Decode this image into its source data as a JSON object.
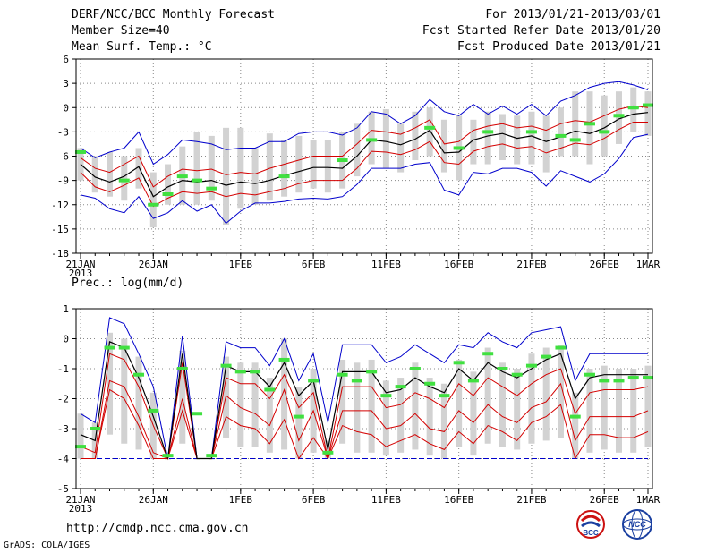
{
  "header": {
    "title": "DERF/NCC/BCC Monthly Forecast",
    "member_size": "Member Size=40",
    "variable": "Mean Surf. Temp.: °C",
    "period": "For 2013/01/21-2013/03/01",
    "fcst_started": "Fcst Started Refer Date 2013/01/20",
    "fcst_produced": "Fcst Produced Date 2013/01/21"
  },
  "footer": {
    "url": "http://cmdp.ncc.cma.gov.cn",
    "grads": "GrADS: COLA/IGES",
    "logo_bcc": "BCC",
    "logo_ncc": "NCC"
  },
  "colors": {
    "box": "#d2d2d2",
    "mean": "#000000",
    "std": "#d40000",
    "minmax": "#0000cc",
    "obs": "#40e040",
    "grid": "#888888"
  },
  "chart_data": [
    {
      "type": "line",
      "title": "Mean Surf. Temp.: °C",
      "x_ticks": [
        "21JAN",
        "26JAN",
        "1FEB",
        "6FEB",
        "11FEB",
        "16FEB",
        "21FEB",
        "26FEB",
        "1MAR"
      ],
      "x_tick_days": [
        0,
        5,
        11,
        16,
        21,
        26,
        31,
        36,
        39
      ],
      "year_label": "2013",
      "ylim": [
        -18,
        6
      ],
      "y_ticks": [
        "6",
        "3",
        "0",
        "-3",
        "-6",
        "-9",
        "-12",
        "-15",
        "-18"
      ],
      "series": [
        {
          "name": "ensemble mean",
          "values": [
            -7.0,
            -8.6,
            -9.2,
            -8.5,
            -7.3,
            -11.0,
            -9.8,
            -9.0,
            -9.2,
            -9.0,
            -9.6,
            -9.2,
            -9.4,
            -9.0,
            -8.4,
            -7.9,
            -7.4,
            -7.4,
            -7.5,
            -6.0,
            -4.0,
            -4.2,
            -4.6,
            -3.9,
            -2.8,
            -5.6,
            -5.5,
            -4.0,
            -3.5,
            -3.2,
            -3.8,
            -3.5,
            -4.2,
            -3.6,
            -2.9,
            -3.2,
            -2.5,
            -1.4,
            -0.8,
            -0.6
          ]
        },
        {
          "name": "upper spread",
          "values": [
            -6.2,
            -7.5,
            -8.0,
            -7.0,
            -6.0,
            -9.8,
            -8.5,
            -7.6,
            -7.8,
            -7.6,
            -8.3,
            -8.0,
            -8.2,
            -7.5,
            -7.0,
            -6.5,
            -6.0,
            -6.0,
            -6.0,
            -4.5,
            -2.8,
            -3.0,
            -3.3,
            -2.5,
            -1.5,
            -4.5,
            -4.2,
            -2.8,
            -2.3,
            -2.0,
            -2.5,
            -2.3,
            -2.8,
            -2.0,
            -1.6,
            -1.8,
            -1.0,
            -0.2,
            0.2,
            0.0
          ]
        },
        {
          "name": "lower spread",
          "values": [
            -8.0,
            -9.8,
            -10.4,
            -9.6,
            -8.7,
            -12.2,
            -11.2,
            -10.4,
            -10.6,
            -10.4,
            -11.0,
            -10.6,
            -10.8,
            -10.4,
            -10.0,
            -9.4,
            -9.0,
            -9.0,
            -9.0,
            -7.5,
            -5.4,
            -5.5,
            -5.8,
            -5.2,
            -4.2,
            -6.8,
            -7.0,
            -5.4,
            -4.8,
            -4.5,
            -5.0,
            -4.8,
            -5.6,
            -5.0,
            -4.4,
            -4.6,
            -3.8,
            -2.7,
            -1.8,
            -1.8
          ]
        },
        {
          "name": "max member",
          "values": [
            -5.0,
            -6.2,
            -5.5,
            -5.0,
            -3.0,
            -7.0,
            -5.8,
            -4.0,
            -4.2,
            -4.5,
            -5.2,
            -5.0,
            -5.0,
            -4.2,
            -4.2,
            -3.2,
            -3.0,
            -3.0,
            -3.4,
            -2.5,
            -0.5,
            -0.8,
            -2.0,
            -1.0,
            1.0,
            -0.5,
            -1.0,
            0.4,
            -0.8,
            0.2,
            -0.8,
            0.4,
            -1.0,
            0.8,
            1.5,
            2.5,
            3.0,
            3.2,
            2.8,
            2.2
          ]
        },
        {
          "name": "min member",
          "values": [
            -10.8,
            -11.2,
            -12.5,
            -13.0,
            -11.0,
            -13.7,
            -13.0,
            -11.5,
            -12.8,
            -12.0,
            -14.3,
            -12.8,
            -11.8,
            -11.8,
            -11.6,
            -11.3,
            -11.2,
            -11.3,
            -11.0,
            -9.5,
            -7.5,
            -7.5,
            -7.5,
            -7.0,
            -6.8,
            -10.2,
            -10.8,
            -8.0,
            -8.2,
            -7.5,
            -7.5,
            -8.0,
            -9.7,
            -7.8,
            -8.5,
            -9.2,
            -8.2,
            -6.3,
            -3.7,
            -3.3
          ]
        },
        {
          "name": "box upper",
          "values": [
            -5.0,
            -6.0,
            -5.5,
            -6.0,
            -5.0,
            -8.0,
            -7.0,
            -4.8,
            -3.0,
            -3.5,
            -2.5,
            -2.5,
            -5.0,
            -3.2,
            -4.0,
            -3.5,
            -4.0,
            -4.0,
            -3.0,
            -2.0,
            -0.5,
            -0.2,
            -2.0,
            -0.5,
            0.0,
            -1.5,
            -1.0,
            -1.5,
            -0.5,
            -0.8,
            -1.0,
            -0.5,
            -1.0,
            0.0,
            2.0,
            2.0,
            1.5,
            2.0,
            2.5,
            2.0
          ]
        },
        {
          "name": "box lower",
          "values": [
            -9.0,
            -10.5,
            -11.0,
            -11.5,
            -10.0,
            -14.8,
            -12.0,
            -12.0,
            -12.0,
            -11.5,
            -14.5,
            -12.5,
            -12.0,
            -11.5,
            -11.0,
            -10.5,
            -10.0,
            -10.5,
            -10.0,
            -8.5,
            -7.0,
            -7.5,
            -8.0,
            -6.5,
            -6.0,
            -8.0,
            -9.0,
            -7.0,
            -7.0,
            -6.5,
            -7.0,
            -7.0,
            -8.0,
            -6.0,
            -6.0,
            -7.0,
            -6.0,
            -4.5,
            -3.0,
            -3.5
          ]
        },
        {
          "name": "observed",
          "values": [
            -5.5,
            null,
            null,
            -9.0,
            null,
            -12.0,
            -10.7,
            -8.5,
            -9.0,
            -10.0,
            null,
            null,
            null,
            null,
            -8.5,
            null,
            null,
            null,
            -6.5,
            null,
            -4.0,
            null,
            null,
            null,
            -2.5,
            null,
            -5.0,
            null,
            -3.0,
            null,
            null,
            -3.0,
            null,
            -3.5,
            -4.0,
            -2.0,
            -3.0,
            -1.0,
            0.0,
            0.3
          ]
        }
      ]
    },
    {
      "type": "line",
      "title": "Prec.: log(mm/d)",
      "x_ticks": [
        "21JAN",
        "26JAN",
        "1FEB",
        "6FEB",
        "11FEB",
        "16FEB",
        "21FEB",
        "26FEB",
        "1MAR"
      ],
      "x_tick_days": [
        0,
        5,
        11,
        16,
        21,
        26,
        31,
        36,
        39
      ],
      "year_label": "2013",
      "ylim": [
        -5,
        1
      ],
      "y_ticks": [
        "1",
        "0",
        "-1",
        "-2",
        "-3",
        "-4",
        "-5"
      ],
      "series": [
        {
          "name": "ensemble mean",
          "values": [
            -3.2,
            -3.4,
            -0.1,
            -0.3,
            -1.3,
            -2.6,
            -4.0,
            -0.5,
            -4.0,
            -4.0,
            -0.9,
            -1.1,
            -1.1,
            -1.6,
            -0.8,
            -1.9,
            -1.4,
            -3.7,
            -1.1,
            -1.1,
            -1.1,
            -1.8,
            -1.7,
            -1.3,
            -1.6,
            -1.8,
            -1.0,
            -1.4,
            -0.8,
            -1.1,
            -1.3,
            -1.0,
            -0.7,
            -0.5,
            -2.0,
            -1.3,
            -1.2,
            -1.2,
            -1.2,
            -1.2
          ]
        },
        {
          "name": "upper spread",
          "values": [
            -3.6,
            -3.8,
            -0.5,
            -0.7,
            -1.6,
            -2.9,
            -4.0,
            -0.8,
            -4.0,
            -4.0,
            -1.3,
            -1.5,
            -1.5,
            -2.0,
            -1.2,
            -2.3,
            -1.8,
            -4.0,
            -1.6,
            -1.6,
            -1.6,
            -2.3,
            -2.2,
            -1.8,
            -2.0,
            -2.3,
            -1.5,
            -1.9,
            -1.3,
            -1.6,
            -1.9,
            -1.5,
            -1.2,
            -1.0,
            -2.5,
            -1.8,
            -1.7,
            -1.7,
            -1.7,
            -1.6
          ]
        },
        {
          "name": "lower spread",
          "values": [
            -4.0,
            -4.0,
            -1.4,
            -1.6,
            -2.6,
            -3.8,
            -4.0,
            -2.0,
            -4.0,
            -4.0,
            -1.9,
            -2.3,
            -2.5,
            -2.9,
            -1.7,
            -3.4,
            -2.4,
            -4.0,
            -2.4,
            -2.4,
            -2.4,
            -3.0,
            -2.9,
            -2.5,
            -3.0,
            -3.1,
            -2.4,
            -2.8,
            -2.2,
            -2.6,
            -2.8,
            -2.3,
            -2.1,
            -1.5,
            -3.4,
            -2.6,
            -2.6,
            -2.6,
            -2.6,
            -2.4
          ]
        },
        {
          "name": "lowest spread",
          "values": [
            -4.0,
            -4.0,
            -1.7,
            -2.0,
            -2.9,
            -4.0,
            -4.0,
            -2.4,
            -4.0,
            -4.0,
            -2.6,
            -2.9,
            -3.0,
            -3.5,
            -2.7,
            -4.0,
            -3.3,
            -4.0,
            -2.9,
            -3.1,
            -3.2,
            -3.6,
            -3.4,
            -3.2,
            -3.5,
            -3.7,
            -3.1,
            -3.5,
            -2.9,
            -3.1,
            -3.4,
            -2.8,
            -2.6,
            -2.2,
            -4.0,
            -3.2,
            -3.2,
            -3.3,
            -3.3,
            -3.1
          ]
        },
        {
          "name": "max member",
          "values": [
            -2.5,
            -2.8,
            0.7,
            0.5,
            -0.5,
            -1.6,
            -4.0,
            0.1,
            -4.0,
            -4.0,
            -0.1,
            -0.3,
            -0.3,
            -0.9,
            0.0,
            -1.4,
            -0.5,
            -2.8,
            -0.2,
            -0.2,
            -0.2,
            -0.8,
            -0.6,
            -0.2,
            -0.5,
            -0.8,
            -0.2,
            -0.3,
            0.2,
            -0.1,
            -0.3,
            0.2,
            0.3,
            0.4,
            -1.4,
            -0.5,
            -0.5,
            -0.5,
            -0.5,
            -0.5
          ]
        },
        {
          "name": "box upper",
          "values": [
            -2.5,
            -2.8,
            0.2,
            0.0,
            -0.6,
            -1.8,
            -4.0,
            -0.4,
            -4.0,
            -4.0,
            -0.6,
            -0.8,
            -0.8,
            -1.3,
            0.0,
            -1.6,
            -1.0,
            -3.4,
            -0.7,
            -0.8,
            -0.7,
            -1.4,
            -1.3,
            -0.8,
            -1.3,
            -1.5,
            -0.7,
            -1.1,
            -0.3,
            -0.8,
            -1.0,
            -0.5,
            -0.3,
            -0.2,
            -1.8,
            -1.0,
            -0.9,
            -1.0,
            -1.0,
            -0.9
          ]
        },
        {
          "name": "box lower",
          "values": [
            -4.0,
            -4.0,
            -3.2,
            -3.5,
            -3.7,
            -4.0,
            -4.0,
            -3.5,
            -4.0,
            -4.0,
            -3.3,
            -3.6,
            -3.6,
            -3.8,
            -3.7,
            -4.0,
            -3.8,
            -4.0,
            -3.5,
            -3.8,
            -3.8,
            -3.9,
            -3.8,
            -3.7,
            -3.9,
            -4.0,
            -3.6,
            -3.9,
            -3.5,
            -3.6,
            -3.7,
            -3.5,
            -3.4,
            -3.3,
            -4.0,
            -3.8,
            -3.7,
            -3.8,
            -3.8,
            -3.6
          ]
        },
        {
          "name": "observed",
          "values": [
            -3.6,
            -3.0,
            -0.3,
            -0.3,
            -1.2,
            -2.4,
            -3.9,
            -1.0,
            -2.5,
            -3.9,
            -0.9,
            -1.1,
            -1.1,
            -1.7,
            -0.7,
            -2.6,
            -1.4,
            -3.8,
            -1.2,
            -1.4,
            -1.1,
            -1.9,
            -1.6,
            -1.0,
            -1.5,
            -1.9,
            -0.8,
            -1.4,
            -0.5,
            -1.0,
            -1.2,
            -0.9,
            -0.6,
            -0.3,
            -2.6,
            -1.2,
            -1.4,
            -1.4,
            -1.3,
            -1.3
          ]
        }
      ]
    }
  ]
}
